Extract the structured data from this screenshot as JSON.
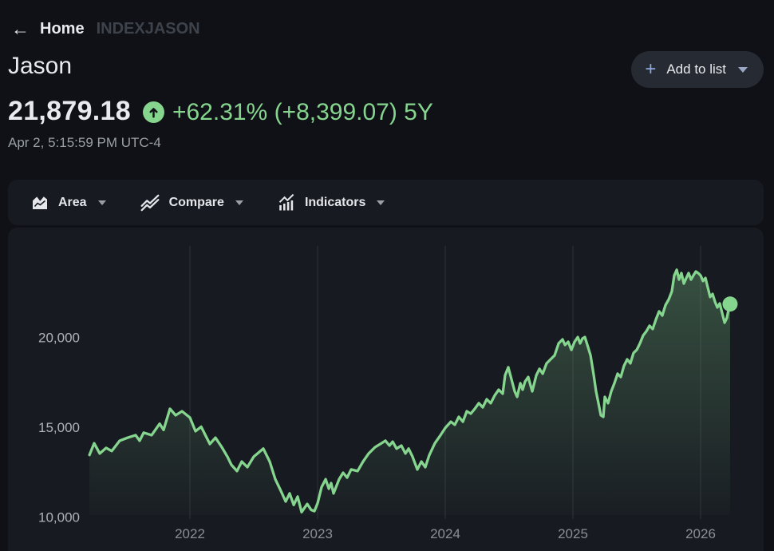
{
  "header": {
    "back_icon": "arrow-left-icon",
    "home": "Home",
    "symbol": "INDEXJASON"
  },
  "title": "Jason",
  "quote": {
    "price": "21,879.18",
    "badge_icon": "arrow-up-circle-icon",
    "change": "+62.31% (+8,399.07) 5Y",
    "timestamp": "Apr 2, 5:15:59 PM UTC-4"
  },
  "add_to_list": {
    "plus": "+",
    "label": "Add to list",
    "caret_icon": "caret-down-icon"
  },
  "toolbar": {
    "items": [
      {
        "label": "Area",
        "icon": "area-chart-icon"
      },
      {
        "label": "Compare",
        "icon": "compare-lines-icon"
      },
      {
        "label": "Indicators",
        "icon": "indicators-bars-icon"
      }
    ]
  },
  "colors": {
    "page_bg": "#0f1116",
    "card_bg": "#171a21",
    "button_bg": "#262a33",
    "accent_green": "#86d58f",
    "accent_blue": "#8fa9dc",
    "caret_blue": "#9aa7c7",
    "muted_text": "#9aa0a6",
    "dim_text": "#3e434b",
    "grid_line": "#2e313a",
    "axis_y_text": "#aeb2b9",
    "axis_x_text": "#8a8f96",
    "text_primary": "#e8eaed"
  },
  "chart_data": {
    "type": "area",
    "title": "Jason (INDEXJASON) 5-year price history",
    "x_ticks": [
      2022,
      2023,
      2024,
      2025,
      2026
    ],
    "x_tick_labels": [
      "2022",
      "2023",
      "2024",
      "2025",
      "2026"
    ],
    "y_ticks": [
      10000,
      15000,
      20000
    ],
    "y_tick_labels": [
      "10,000",
      "15,000",
      "20,000"
    ],
    "x_range": [
      2021.213,
      2026.231
    ],
    "y_range": [
      10000,
      25200
    ],
    "grid": "vertical-year-lines-only",
    "legend": "none",
    "line_color": "#86d58f",
    "fill": "green-gradient-fading-down",
    "last_value": 21879.18,
    "series": [
      {
        "name": "Jason",
        "points": [
          [
            2021.213,
            13480
          ],
          [
            2021.25,
            14130
          ],
          [
            2021.294,
            13560
          ],
          [
            2021.344,
            13870
          ],
          [
            2021.388,
            13700
          ],
          [
            2021.45,
            14270
          ],
          [
            2021.513,
            14440
          ],
          [
            2021.575,
            14580
          ],
          [
            2021.606,
            14270
          ],
          [
            2021.638,
            14720
          ],
          [
            2021.7,
            14580
          ],
          [
            2021.763,
            15220
          ],
          [
            2021.794,
            14870
          ],
          [
            2021.844,
            16050
          ],
          [
            2021.888,
            15690
          ],
          [
            2021.938,
            15910
          ],
          [
            2022.0,
            15560
          ],
          [
            2022.044,
            14800
          ],
          [
            2022.088,
            15050
          ],
          [
            2022.156,
            14090
          ],
          [
            2022.2,
            14440
          ],
          [
            2022.25,
            13910
          ],
          [
            2022.294,
            13380
          ],
          [
            2022.325,
            12930
          ],
          [
            2022.369,
            12580
          ],
          [
            2022.406,
            13110
          ],
          [
            2022.45,
            12800
          ],
          [
            2022.5,
            13380
          ],
          [
            2022.575,
            13830
          ],
          [
            2022.625,
            13110
          ],
          [
            2022.669,
            12130
          ],
          [
            2022.713,
            11470
          ],
          [
            2022.75,
            10890
          ],
          [
            2022.781,
            11340
          ],
          [
            2022.813,
            10700
          ],
          [
            2022.844,
            11160
          ],
          [
            2022.875,
            10300
          ],
          [
            2022.919,
            10750
          ],
          [
            2022.95,
            10420
          ],
          [
            2022.975,
            10350
          ],
          [
            2023.0,
            10790
          ],
          [
            2023.031,
            11690
          ],
          [
            2023.063,
            12130
          ],
          [
            2023.088,
            11600
          ],
          [
            2023.106,
            11910
          ],
          [
            2023.125,
            11340
          ],
          [
            2023.169,
            12130
          ],
          [
            2023.2,
            12490
          ],
          [
            2023.231,
            12220
          ],
          [
            2023.263,
            12670
          ],
          [
            2023.313,
            12580
          ],
          [
            2023.356,
            13110
          ],
          [
            2023.4,
            13560
          ],
          [
            2023.45,
            13910
          ],
          [
            2023.5,
            14130
          ],
          [
            2023.531,
            14270
          ],
          [
            2023.563,
            14000
          ],
          [
            2023.588,
            14220
          ],
          [
            2023.619,
            13830
          ],
          [
            2023.656,
            14000
          ],
          [
            2023.688,
            13560
          ],
          [
            2023.713,
            13830
          ],
          [
            2023.744,
            13380
          ],
          [
            2023.781,
            12670
          ],
          [
            2023.813,
            13110
          ],
          [
            2023.844,
            12800
          ],
          [
            2023.875,
            13470
          ],
          [
            2023.919,
            14130
          ],
          [
            2023.963,
            14580
          ],
          [
            2024.0,
            14980
          ],
          [
            2024.044,
            15330
          ],
          [
            2024.075,
            15160
          ],
          [
            2024.106,
            15600
          ],
          [
            2024.138,
            15330
          ],
          [
            2024.169,
            15910
          ],
          [
            2024.2,
            15780
          ],
          [
            2024.231,
            16050
          ],
          [
            2024.263,
            16360
          ],
          [
            2024.294,
            16130
          ],
          [
            2024.325,
            16580
          ],
          [
            2024.356,
            16360
          ],
          [
            2024.388,
            16800
          ],
          [
            2024.419,
            17110
          ],
          [
            2024.45,
            16890
          ],
          [
            2024.469,
            17910
          ],
          [
            2024.494,
            18360
          ],
          [
            2024.519,
            17690
          ],
          [
            2024.544,
            17020
          ],
          [
            2024.563,
            16710
          ],
          [
            2024.588,
            17470
          ],
          [
            2024.606,
            17110
          ],
          [
            2024.625,
            17560
          ],
          [
            2024.65,
            17820
          ],
          [
            2024.669,
            17330
          ],
          [
            2024.681,
            17020
          ],
          [
            2024.713,
            17910
          ],
          [
            2024.738,
            18270
          ],
          [
            2024.763,
            18000
          ],
          [
            2024.794,
            18580
          ],
          [
            2024.825,
            18800
          ],
          [
            2024.856,
            19020
          ],
          [
            2024.888,
            19690
          ],
          [
            2024.919,
            19910
          ],
          [
            2024.938,
            19600
          ],
          [
            2024.963,
            19780
          ],
          [
            2024.988,
            19330
          ],
          [
            2025.013,
            19780
          ],
          [
            2025.038,
            20040
          ],
          [
            2025.056,
            19690
          ],
          [
            2025.075,
            19960
          ],
          [
            2025.094,
            20040
          ],
          [
            2025.119,
            19470
          ],
          [
            2025.138,
            19020
          ],
          [
            2025.163,
            17910
          ],
          [
            2025.181,
            17020
          ],
          [
            2025.2,
            16360
          ],
          [
            2025.219,
            15690
          ],
          [
            2025.238,
            15600
          ],
          [
            2025.25,
            16710
          ],
          [
            2025.275,
            16360
          ],
          [
            2025.3,
            17020
          ],
          [
            2025.325,
            17470
          ],
          [
            2025.35,
            18000
          ],
          [
            2025.375,
            17820
          ],
          [
            2025.4,
            18440
          ],
          [
            2025.425,
            18800
          ],
          [
            2025.45,
            18580
          ],
          [
            2025.475,
            19160
          ],
          [
            2025.5,
            19330
          ],
          [
            2025.525,
            19690
          ],
          [
            2025.55,
            20130
          ],
          [
            2025.575,
            20360
          ],
          [
            2025.6,
            20670
          ],
          [
            2025.625,
            20490
          ],
          [
            2025.65,
            21020
          ],
          [
            2025.675,
            21470
          ],
          [
            2025.7,
            21240
          ],
          [
            2025.725,
            21820
          ],
          [
            2025.75,
            22130
          ],
          [
            2025.775,
            22580
          ],
          [
            2025.794,
            23470
          ],
          [
            2025.813,
            23780
          ],
          [
            2025.831,
            23240
          ],
          [
            2025.85,
            23600
          ],
          [
            2025.869,
            23020
          ],
          [
            2025.888,
            23330
          ],
          [
            2025.906,
            23600
          ],
          [
            2025.925,
            23240
          ],
          [
            2025.944,
            23470
          ],
          [
            2025.963,
            23690
          ],
          [
            2025.981,
            23600
          ],
          [
            2026.0,
            23470
          ],
          [
            2026.019,
            23160
          ],
          [
            2026.038,
            23330
          ],
          [
            2026.056,
            22800
          ],
          [
            2026.075,
            22270
          ],
          [
            2026.094,
            22440
          ],
          [
            2026.113,
            22000
          ],
          [
            2026.131,
            21690
          ],
          [
            2026.15,
            21910
          ],
          [
            2026.169,
            21380
          ],
          [
            2026.188,
            20840
          ],
          [
            2026.206,
            21110
          ],
          [
            2026.219,
            21560
          ],
          [
            2026.231,
            21879.18
          ]
        ]
      }
    ]
  }
}
